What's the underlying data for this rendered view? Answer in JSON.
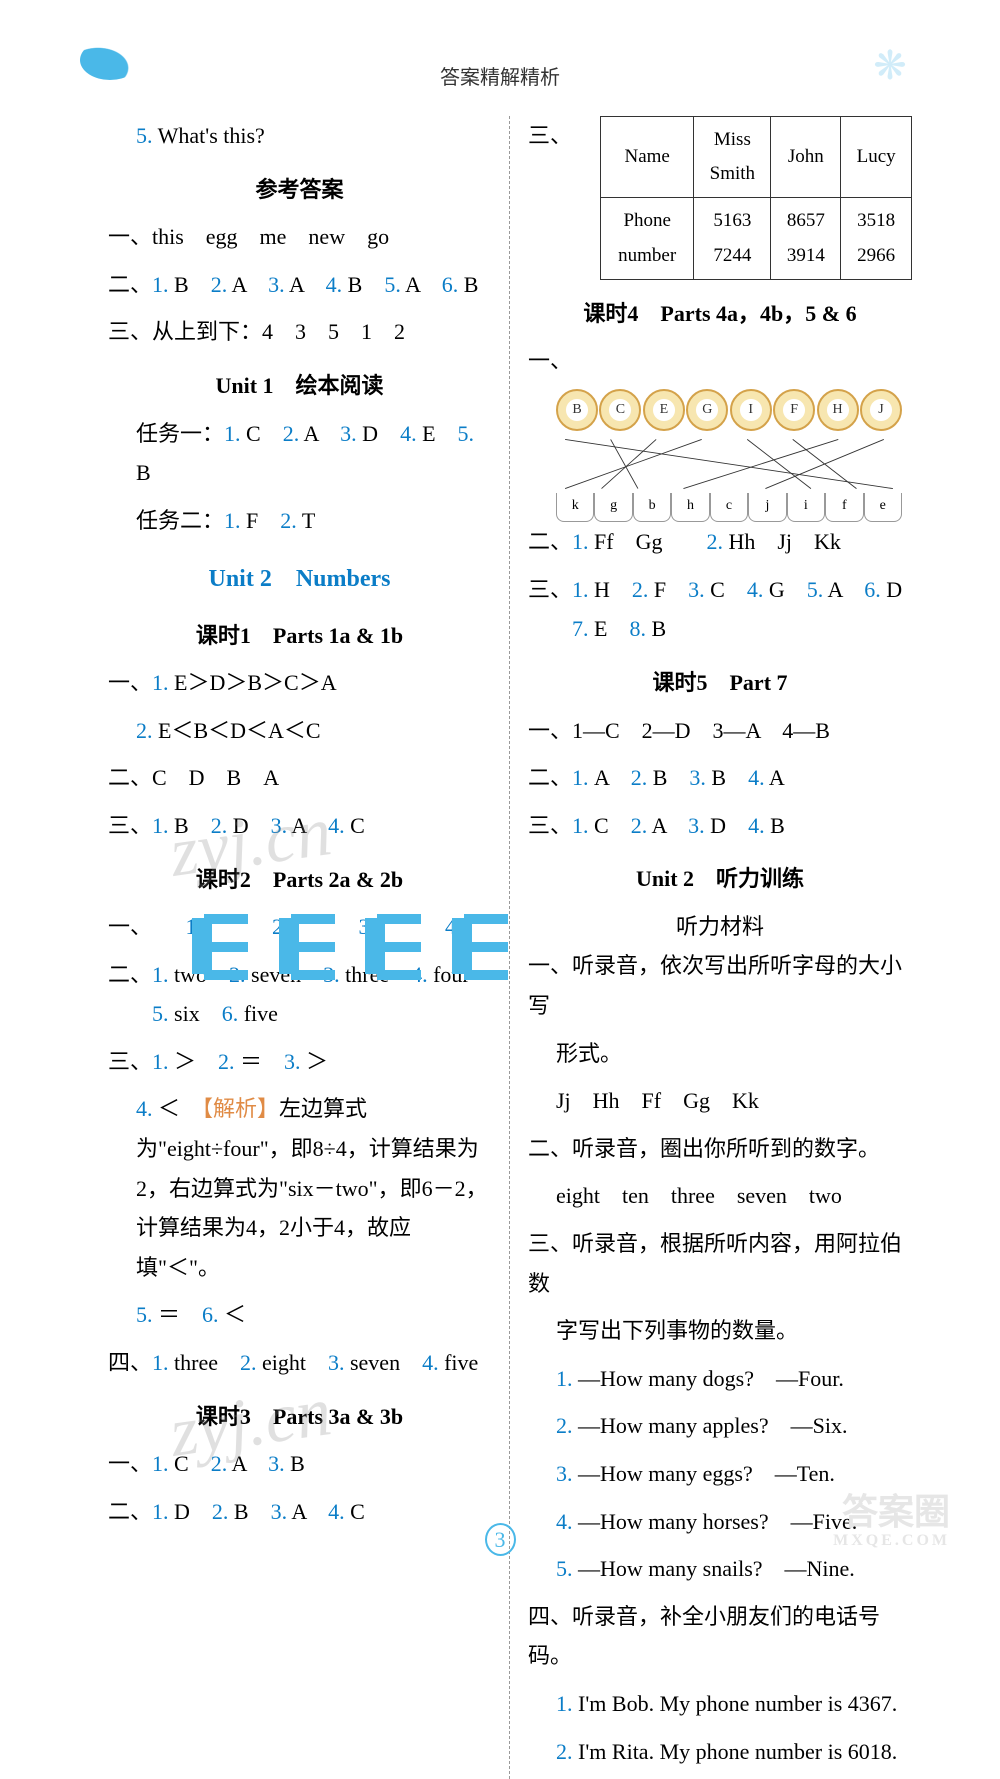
{
  "header_title": "答案精解精析",
  "left": {
    "q5": "5.",
    "q5_text": " What's this?",
    "ref_ans": "参考答案",
    "l1": "一、this　egg　me　new　go",
    "l2_pre": "二、",
    "l2_items": [
      [
        "1.",
        "B"
      ],
      [
        "2.",
        "A"
      ],
      [
        "3.",
        "A"
      ],
      [
        "4.",
        "B"
      ],
      [
        "5.",
        "A"
      ],
      [
        "6.",
        "B"
      ]
    ],
    "l3": "三、从上到下：4　3　5　1　2",
    "u1read": "Unit 1　绘本阅读",
    "task1_pre": "任务一：",
    "task1_items": [
      [
        "1.",
        "C"
      ],
      [
        "2.",
        "A"
      ],
      [
        "3.",
        "D"
      ],
      [
        "4.",
        "E"
      ],
      [
        "5.",
        "B"
      ]
    ],
    "task2_pre": "任务二：",
    "task2_items": [
      [
        "1.",
        "F"
      ],
      [
        "2.",
        "T"
      ]
    ],
    "unit2_title": "Unit 2　Numbers",
    "ks1": "课时1　Parts 1a & 1b",
    "ks1_1_pre": "一、",
    "ks1_1a_lbl": "1.",
    "ks1_1a": " E＞D＞B＞C＞A",
    "ks1_1b_lbl": "2.",
    "ks1_1b": " E＜B＜D＜A＜C",
    "ks1_2": "二、C　D　B　A",
    "ks1_3_pre": "三、",
    "ks1_3_items": [
      [
        "1.",
        "B"
      ],
      [
        "2.",
        "D"
      ],
      [
        "3.",
        "A"
      ],
      [
        "4.",
        "C"
      ]
    ],
    "ks2": "课时2　Parts 2a & 2b",
    "ks2_1_pre": "一、",
    "ks2_1_items": [
      "1.",
      "2.",
      "3.",
      "4."
    ],
    "ks2_2_pre": "二、",
    "ks2_2_items": [
      [
        "1.",
        "two"
      ],
      [
        "2.",
        "seven"
      ],
      [
        "3.",
        "three"
      ],
      [
        "4.",
        "four"
      ],
      [
        "5.",
        "six"
      ],
      [
        "6.",
        "five"
      ]
    ],
    "ks2_3_pre": "三、",
    "ks2_3_items": [
      [
        "1.",
        "＞"
      ],
      [
        "2.",
        "＝"
      ],
      [
        "3.",
        "＞"
      ]
    ],
    "ks2_3_4_lbl": "4.",
    "ks2_3_4_sign": "＜",
    "ks2_3_4_tag": "【解析】",
    "ks2_3_4_txt": "左边算式为\"eight÷four\"，即8÷4，计算结果为2，右边算式为\"six－two\"，即6－2，计算结果为4，2小于4，故应填\"＜\"。",
    "ks2_3_56": [
      [
        "5.",
        "＝"
      ],
      [
        "6.",
        "＜"
      ]
    ],
    "ks2_4_pre": "四、",
    "ks2_4_items": [
      [
        "1.",
        "three"
      ],
      [
        "2.",
        "eight"
      ],
      [
        "3.",
        "seven"
      ],
      [
        "4.",
        "five"
      ]
    ],
    "ks3": "课时3　Parts 3a & 3b",
    "ks3_1_pre": "一、",
    "ks3_1_items": [
      [
        "1.",
        "C"
      ],
      [
        "2.",
        "A"
      ],
      [
        "3.",
        "B"
      ]
    ],
    "ks3_2_pre": "二、",
    "ks3_2_items": [
      [
        "1.",
        "D"
      ],
      [
        "2.",
        "B"
      ],
      [
        "3.",
        "A"
      ],
      [
        "4.",
        "C"
      ]
    ]
  },
  "right": {
    "tbl_pre": "三、",
    "tbl_head": [
      "Name",
      "Miss Smith",
      "John",
      "Lucy"
    ],
    "tbl_row": [
      "Phone number",
      "5163 7244",
      "8657 3914",
      "3518 2966"
    ],
    "ks4": "课时4　Parts 4a，4b，5 & 6",
    "ks4_1_pre": "一、",
    "flowers": [
      "B",
      "C",
      "E",
      "G",
      "I",
      "F",
      "H",
      "J"
    ],
    "cups": [
      "k",
      "g",
      "b",
      "h",
      "c",
      "j",
      "i",
      "f",
      "e"
    ],
    "ks4_2_pre": "二、",
    "ks4_2_a": [
      [
        "1.",
        "Ff　Gg"
      ],
      [
        "2.",
        "Hh　Jj　Kk"
      ]
    ],
    "ks4_3_pre": "三、",
    "ks4_3_items": [
      [
        "1.",
        "H"
      ],
      [
        "2.",
        "F"
      ],
      [
        "3.",
        "C"
      ],
      [
        "4.",
        "G"
      ],
      [
        "5.",
        "A"
      ],
      [
        "6.",
        "D"
      ],
      [
        "7.",
        "E"
      ],
      [
        "8.",
        "B"
      ]
    ],
    "ks5": "课时5　Part 7",
    "ks5_1": "一、1—C　2—D　3—A　4—B",
    "ks5_2_pre": "二、",
    "ks5_2_items": [
      [
        "1.",
        "A"
      ],
      [
        "2.",
        "B"
      ],
      [
        "3.",
        "B"
      ],
      [
        "4.",
        "A"
      ]
    ],
    "ks5_3_pre": "三、",
    "ks5_3_items": [
      [
        "1.",
        "C"
      ],
      [
        "2.",
        "A"
      ],
      [
        "3.",
        "D"
      ],
      [
        "4.",
        "B"
      ]
    ],
    "u2lt": "Unit 2　听力训练",
    "u2lt_mat": "听力材料",
    "lt1a": "一、听录音，依次写出所听字母的大小写",
    "lt1b": "形式。",
    "lt1c": "Jj　Hh　Ff　Gg　Kk",
    "lt2a": "二、听录音，圈出你所听到的数字。",
    "lt2b": "eight　ten　three　seven　two",
    "lt3a": "三、听录音，根据所听内容，用阿拉伯数",
    "lt3b": "字写出下列事物的数量。",
    "lt3_items": [
      [
        "1.",
        "—How many dogs?　—Four."
      ],
      [
        "2.",
        "—How many apples?　—Six."
      ],
      [
        "3.",
        "—How many eggs?　—Ten."
      ],
      [
        "4.",
        "—How many horses?　—Five."
      ],
      [
        "5.",
        "—How many snails?　—Nine."
      ]
    ],
    "lt4a": "四、听录音，补全小朋友们的电话号码。",
    "lt4_items": [
      [
        "1.",
        "I'm Bob. My phone number is 4367."
      ],
      [
        "2.",
        "I'm Rita. My phone number is 6018."
      ]
    ]
  },
  "page_num": "3",
  "wm": "zyj.cn",
  "logo_main": "答案圈",
  "logo_sub": "MXQE.COM"
}
